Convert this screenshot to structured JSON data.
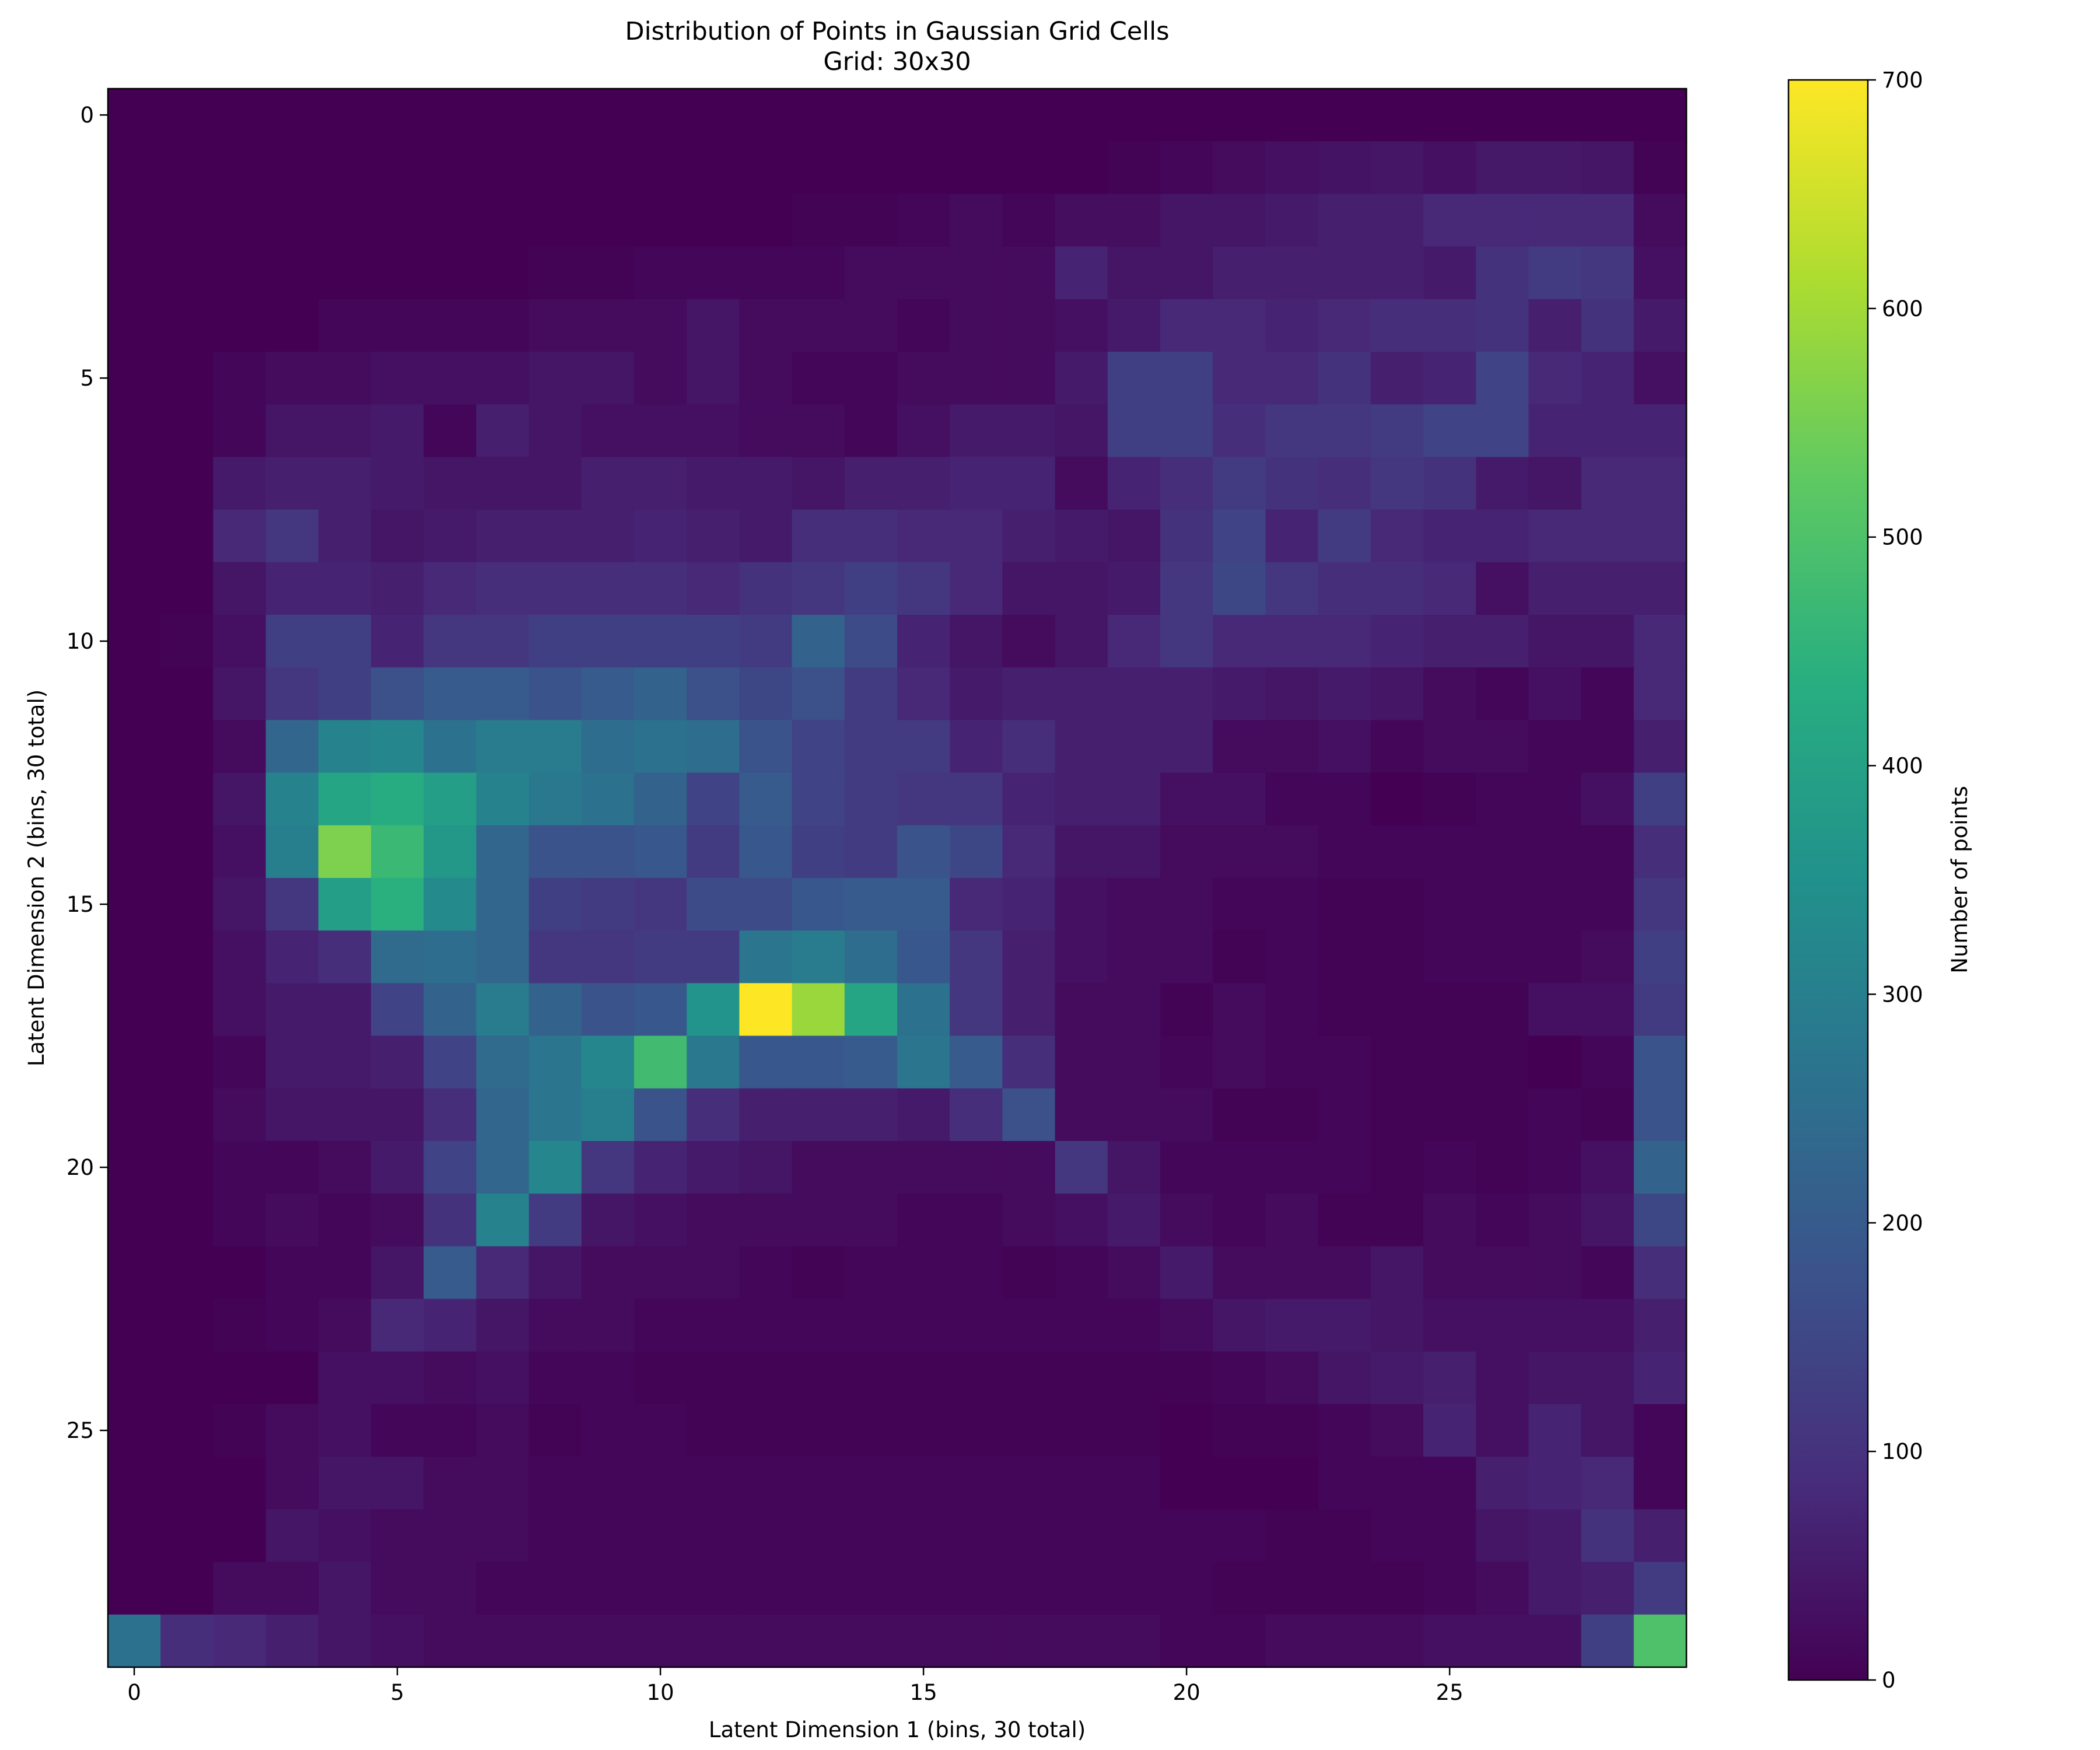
{
  "chart_data": {
    "type": "heatmap",
    "title": "Distribution of Points in Gaussian Grid Cells",
    "subtitle": "Grid: 30x30",
    "xlabel": "Latent Dimension 1 (bins, 30 total)",
    "ylabel": "Latent Dimension 2 (bins, 30 total)",
    "colorbar_label": "Number of points",
    "colormap": "viridis",
    "vmin": 0,
    "vmax": 700,
    "x_ticks": [
      0,
      5,
      10,
      15,
      20,
      25
    ],
    "y_ticks": [
      0,
      5,
      10,
      15,
      20,
      25
    ],
    "colorbar_ticks": [
      0,
      100,
      200,
      300,
      400,
      500,
      600,
      700
    ],
    "rows": 30,
    "cols": 30,
    "values": [
      [
        0,
        0,
        0,
        0,
        0,
        0,
        0,
        0,
        0,
        0,
        0,
        0,
        0,
        0,
        0,
        0,
        0,
        0,
        0,
        0,
        0,
        0,
        0,
        0,
        0,
        0,
        0,
        0,
        0,
        0
      ],
      [
        0,
        0,
        0,
        0,
        0,
        0,
        0,
        0,
        0,
        0,
        0,
        0,
        0,
        0,
        0,
        0,
        0,
        0,
        0,
        5,
        10,
        20,
        30,
        35,
        40,
        30,
        45,
        45,
        40,
        5
      ],
      [
        0,
        0,
        0,
        0,
        0,
        0,
        0,
        0,
        0,
        0,
        0,
        0,
        0,
        5,
        5,
        10,
        20,
        10,
        25,
        25,
        40,
        40,
        50,
        60,
        60,
        80,
        80,
        80,
        80,
        20
      ],
      [
        0,
        0,
        0,
        0,
        0,
        0,
        0,
        0,
        5,
        5,
        10,
        10,
        10,
        10,
        20,
        20,
        20,
        20,
        70,
        40,
        40,
        60,
        60,
        60,
        60,
        50,
        100,
        120,
        110,
        30
      ],
      [
        0,
        0,
        0,
        0,
        10,
        10,
        10,
        10,
        20,
        20,
        20,
        40,
        20,
        20,
        20,
        10,
        20,
        20,
        30,
        50,
        80,
        80,
        70,
        80,
        90,
        90,
        100,
        60,
        100,
        50
      ],
      [
        0,
        0,
        10,
        20,
        20,
        30,
        30,
        30,
        40,
        40,
        20,
        40,
        20,
        10,
        10,
        20,
        20,
        20,
        50,
        130,
        130,
        80,
        80,
        100,
        60,
        70,
        140,
        80,
        70,
        30
      ],
      [
        0,
        0,
        10,
        40,
        40,
        50,
        10,
        60,
        40,
        30,
        30,
        30,
        20,
        20,
        10,
        30,
        50,
        50,
        40,
        130,
        130,
        90,
        110,
        110,
        120,
        140,
        140,
        70,
        70,
        70
      ],
      [
        0,
        0,
        50,
        60,
        60,
        50,
        40,
        40,
        40,
        60,
        60,
        50,
        50,
        40,
        60,
        60,
        70,
        70,
        20,
        70,
        90,
        120,
        100,
        90,
        110,
        100,
        50,
        40,
        80,
        80
      ],
      [
        0,
        0,
        80,
        110,
        60,
        40,
        50,
        60,
        60,
        60,
        70,
        60,
        50,
        90,
        90,
        80,
        80,
        60,
        50,
        40,
        100,
        140,
        70,
        120,
        80,
        70,
        70,
        80,
        80,
        80
      ],
      [
        0,
        0,
        40,
        70,
        70,
        60,
        80,
        90,
        90,
        90,
        90,
        80,
        100,
        110,
        130,
        110,
        80,
        40,
        40,
        50,
        110,
        150,
        110,
        90,
        90,
        80,
        30,
        60,
        60,
        60
      ],
      [
        0,
        5,
        30,
        130,
        130,
        70,
        110,
        110,
        130,
        130,
        130,
        130,
        120,
        220,
        160,
        70,
        40,
        20,
        40,
        80,
        110,
        80,
        80,
        80,
        70,
        60,
        60,
        40,
        40,
        80
      ],
      [
        0,
        0,
        40,
        110,
        130,
        170,
        200,
        200,
        180,
        200,
        220,
        170,
        150,
        170,
        120,
        80,
        50,
        60,
        60,
        60,
        60,
        50,
        40,
        50,
        40,
        20,
        10,
        30,
        10,
        80
      ],
      [
        0,
        0,
        20,
        230,
        310,
        320,
        260,
        290,
        290,
        250,
        260,
        250,
        180,
        140,
        120,
        120,
        70,
        90,
        60,
        60,
        60,
        20,
        20,
        30,
        10,
        20,
        20,
        10,
        10,
        60
      ],
      [
        0,
        0,
        40,
        310,
        410,
        430,
        390,
        310,
        280,
        260,
        220,
        140,
        200,
        140,
        120,
        110,
        110,
        70,
        60,
        60,
        30,
        30,
        10,
        10,
        0,
        5,
        10,
        10,
        30,
        130
      ],
      [
        0,
        0,
        30,
        300,
        560,
        470,
        370,
        230,
        180,
        180,
        190,
        120,
        190,
        130,
        120,
        180,
        150,
        80,
        40,
        40,
        20,
        20,
        20,
        10,
        10,
        10,
        10,
        10,
        10,
        90
      ],
      [
        0,
        0,
        40,
        110,
        390,
        440,
        330,
        230,
        130,
        120,
        110,
        160,
        160,
        190,
        200,
        200,
        80,
        70,
        30,
        20,
        20,
        10,
        10,
        5,
        5,
        10,
        10,
        10,
        10,
        110
      ],
      [
        0,
        0,
        30,
        70,
        90,
        240,
        250,
        230,
        110,
        110,
        120,
        120,
        270,
        290,
        250,
        190,
        110,
        60,
        30,
        20,
        20,
        5,
        10,
        5,
        5,
        10,
        10,
        10,
        20,
        130
      ],
      [
        0,
        0,
        30,
        50,
        50,
        140,
        220,
        290,
        220,
        180,
        190,
        360,
        700,
        590,
        410,
        260,
        110,
        60,
        20,
        20,
        5,
        20,
        10,
        5,
        5,
        5,
        5,
        30,
        30,
        120
      ],
      [
        0,
        0,
        10,
        50,
        50,
        60,
        140,
        240,
        270,
        320,
        480,
        280,
        190,
        190,
        200,
        270,
        200,
        90,
        20,
        20,
        10,
        20,
        10,
        10,
        5,
        5,
        5,
        0,
        10,
        180
      ],
      [
        0,
        0,
        20,
        40,
        40,
        40,
        90,
        230,
        270,
        300,
        180,
        90,
        60,
        60,
        60,
        50,
        90,
        170,
        20,
        20,
        20,
        5,
        5,
        10,
        5,
        5,
        5,
        10,
        5,
        180
      ],
      [
        0,
        0,
        10,
        10,
        20,
        50,
        140,
        230,
        320,
        110,
        70,
        50,
        40,
        20,
        20,
        20,
        20,
        20,
        110,
        40,
        10,
        10,
        10,
        10,
        5,
        10,
        5,
        10,
        30,
        220
      ],
      [
        0,
        0,
        10,
        20,
        10,
        20,
        100,
        310,
        120,
        40,
        30,
        20,
        20,
        20,
        20,
        10,
        10,
        20,
        30,
        50,
        20,
        10,
        20,
        5,
        5,
        20,
        10,
        20,
        40,
        150
      ],
      [
        0,
        0,
        0,
        10,
        10,
        40,
        200,
        80,
        40,
        20,
        20,
        20,
        10,
        5,
        10,
        10,
        10,
        5,
        10,
        20,
        50,
        20,
        20,
        20,
        40,
        20,
        20,
        20,
        10,
        90
      ],
      [
        0,
        0,
        5,
        10,
        20,
        80,
        70,
        40,
        20,
        20,
        10,
        10,
        10,
        10,
        10,
        10,
        10,
        10,
        10,
        10,
        20,
        40,
        50,
        50,
        40,
        30,
        30,
        30,
        30,
        60
      ],
      [
        0,
        0,
        0,
        0,
        30,
        30,
        20,
        30,
        10,
        10,
        5,
        5,
        5,
        5,
        5,
        5,
        5,
        5,
        5,
        5,
        5,
        10,
        20,
        40,
        50,
        60,
        30,
        40,
        40,
        70
      ],
      [
        0,
        0,
        5,
        20,
        30,
        10,
        10,
        20,
        5,
        10,
        10,
        5,
        5,
        5,
        5,
        5,
        5,
        5,
        5,
        5,
        0,
        5,
        5,
        10,
        20,
        70,
        30,
        70,
        40,
        10
      ],
      [
        0,
        0,
        0,
        20,
        40,
        40,
        20,
        20,
        10,
        10,
        10,
        10,
        10,
        10,
        10,
        10,
        10,
        10,
        10,
        10,
        0,
        0,
        0,
        10,
        10,
        10,
        60,
        70,
        80,
        10
      ],
      [
        0,
        0,
        0,
        40,
        30,
        20,
        20,
        20,
        10,
        10,
        10,
        10,
        10,
        10,
        10,
        10,
        10,
        10,
        10,
        10,
        10,
        10,
        5,
        5,
        10,
        10,
        40,
        50,
        100,
        60
      ],
      [
        0,
        0,
        20,
        20,
        40,
        20,
        20,
        10,
        10,
        10,
        10,
        10,
        10,
        10,
        10,
        10,
        10,
        10,
        10,
        10,
        10,
        5,
        5,
        5,
        5,
        10,
        20,
        50,
        60,
        120
      ],
      [
        260,
        90,
        80,
        60,
        40,
        30,
        20,
        20,
        20,
        20,
        20,
        20,
        20,
        20,
        20,
        20,
        20,
        20,
        20,
        20,
        10,
        10,
        20,
        20,
        20,
        30,
        30,
        30,
        130,
        500
      ]
    ]
  }
}
